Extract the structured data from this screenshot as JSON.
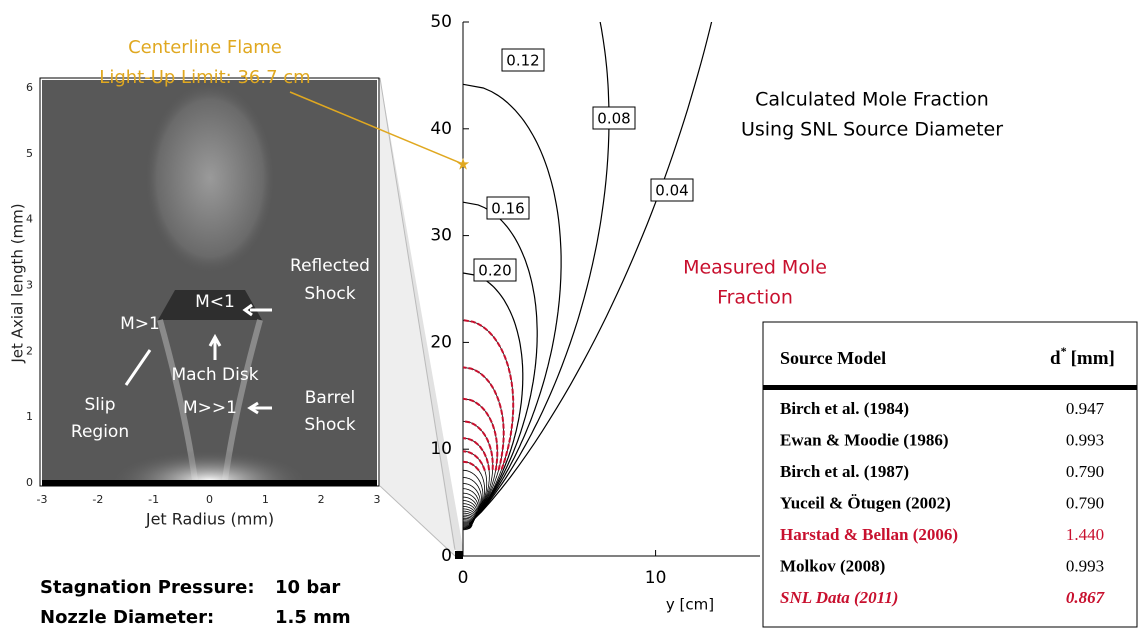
{
  "chart_data": [
    {
      "type": "image",
      "xlabel": "Jet Radius (mm)",
      "ylabel": "Jet Axial length (mm)",
      "xlim": [
        -3,
        3
      ],
      "xticks": [
        -3,
        -2,
        -1,
        0,
        1,
        2,
        3
      ],
      "ylim": [
        0,
        6
      ],
      "yticks": [
        0,
        1,
        2,
        3,
        4,
        5,
        6
      ],
      "annotations": [
        "Reflected",
        "Shock",
        "M<1",
        "M>1",
        "Mach Disk",
        "Slip",
        "Region",
        "Barrel",
        "Shock",
        "M>>1"
      ]
    },
    {
      "type": "contour",
      "xlabel": "y [cm]",
      "xlim": [
        0,
        13.5
      ],
      "xticks": [
        0,
        10
      ],
      "ylim": [
        0,
        50
      ],
      "yticks": [
        0,
        10,
        20,
        30,
        40,
        50
      ],
      "levels": [
        0.12,
        0.08,
        0.04,
        0.16,
        {
          "value": 0.2,
          "label": "0.20"
        }
      ],
      "title": [
        "Calculated Mole Fraction",
        "Using SNL Source Diameter"
      ],
      "measured_label": [
        "Measured Mole",
        "Fraction"
      ],
      "measured_color": "#c8102e",
      "line_color": "#000000"
    }
  ],
  "flame_annotation": {
    "lines": [
      "Centerline Flame",
      "Light-Up Limit: 36.7 cm"
    ],
    "z": 36.7,
    "color": "#e0a820"
  },
  "conditions": [
    [
      "Stagnation Pressure:",
      "10 bar"
    ],
    [
      "Nozzle Diameter:",
      "1.5 mm"
    ]
  ],
  "table": {
    "header": {
      "model": "Source Model",
      "symbol": "d",
      "superscript": "*",
      "unit": "[mm]"
    },
    "rows": [
      {
        "model": "Birch et al. (1984)",
        "d": "0.947",
        "color": "#000000"
      },
      {
        "model": "Ewan & Moodie (1986)",
        "d": "0.993",
        "color": "#000000"
      },
      {
        "model": "Birch et al. (1987)",
        "d": "0.790",
        "color": "#000000"
      },
      {
        "model": "Yuceil & Ötugen (2002)",
        "d": "0.790",
        "color": "#000000"
      },
      {
        "model": "Harstad & Bellan (2006)",
        "d": "1.440",
        "color": "#c8102e"
      },
      {
        "model": "Molkov (2008)",
        "d": "0.993",
        "color": "#000000"
      },
      {
        "model": "SNL Data (2011)",
        "d": "0.867",
        "color": "#c8102e",
        "italic": true
      }
    ]
  }
}
